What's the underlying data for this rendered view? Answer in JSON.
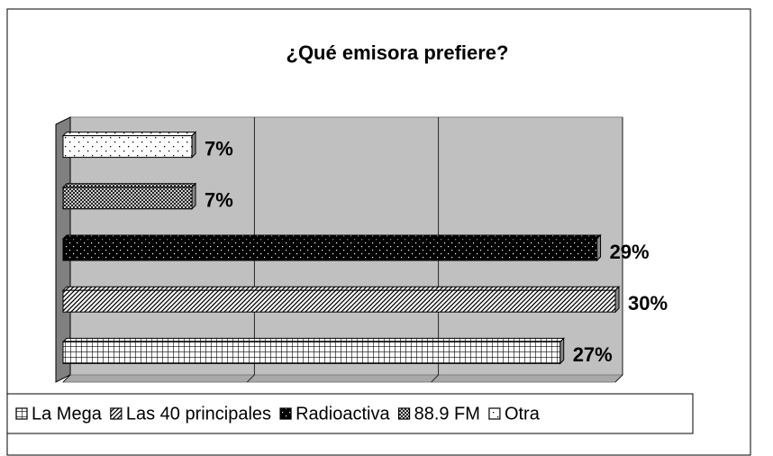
{
  "chart_data": {
    "type": "bar3d_horizontal",
    "title": "¿Qué emisora prefiere?",
    "xlim": [
      0,
      30
    ],
    "xticks": [
      0,
      10,
      20,
      30
    ],
    "grid": true,
    "series": [
      {
        "name": "La Mega",
        "color": "#000000",
        "pattern": "grid",
        "values": [
          27
        ],
        "value_labels": [
          "27%"
        ]
      },
      {
        "name": "Las 40 principales",
        "color": "#000000",
        "pattern": "diagonal",
        "values": [
          30
        ],
        "value_labels": [
          "30%"
        ]
      },
      {
        "name": "Radioactiva",
        "color": "#000000",
        "pattern": "dots-on-black",
        "values": [
          29
        ],
        "value_labels": [
          "29%"
        ]
      },
      {
        "name": "88.9 FM",
        "color": "#000000",
        "pattern": "crosshatch",
        "values": [
          7
        ],
        "value_labels": [
          "7%"
        ]
      },
      {
        "name": "Otra",
        "color": "#000000",
        "pattern": "sparse-dots",
        "values": [
          7
        ],
        "value_labels": [
          "7%"
        ]
      }
    ]
  }
}
